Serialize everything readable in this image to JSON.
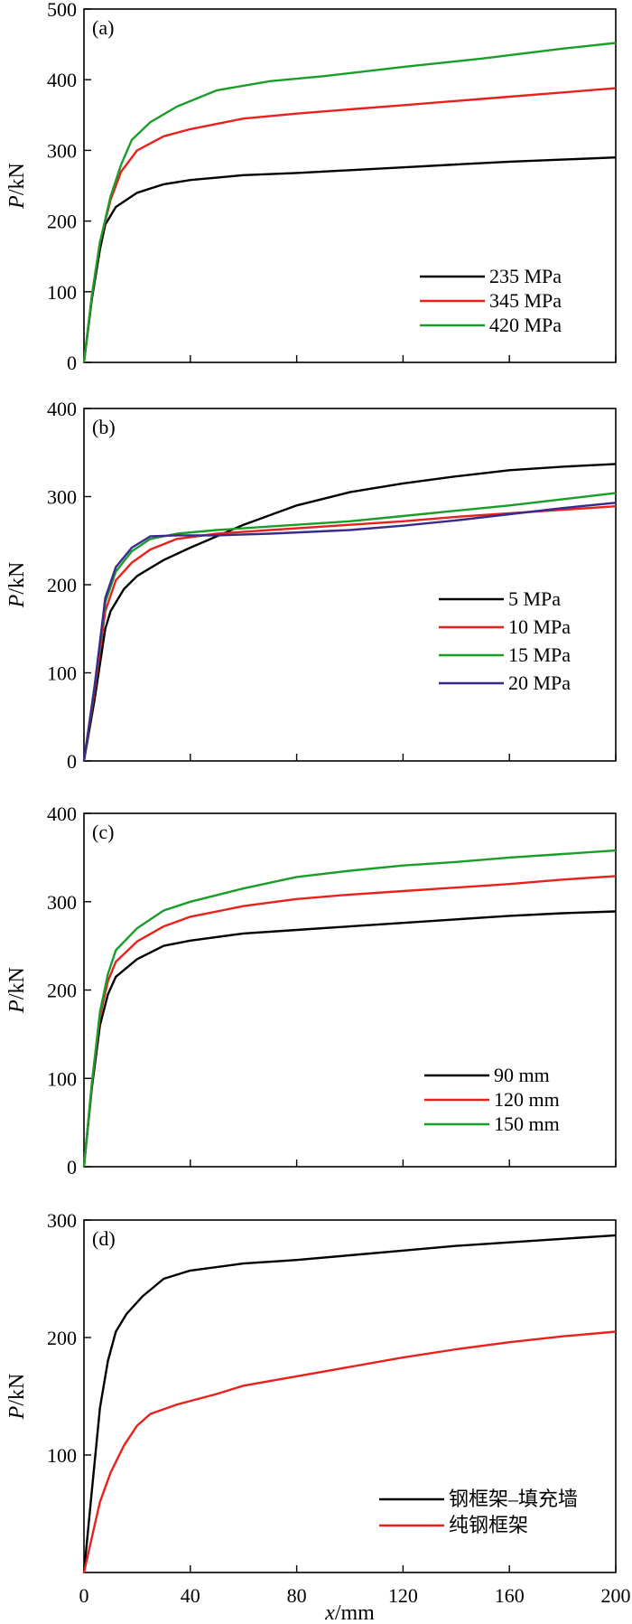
{
  "figure": {
    "x_axis_label_var": "x",
    "x_axis_label_unit": "/mm",
    "y_axis_label_var": "P",
    "y_axis_label_unit": "/kN",
    "x_tick_labels": [
      "0",
      "40",
      "80",
      "120",
      "160",
      "200"
    ]
  },
  "chart_data": [
    {
      "panel_label": "(a)",
      "type": "line",
      "xlim": [
        0,
        200
      ],
      "ylim": [
        0,
        500
      ],
      "yticks": [
        0,
        100,
        200,
        300,
        400,
        500
      ],
      "ytick_labels": [
        "0",
        "100",
        "200",
        "300",
        "400",
        "500"
      ],
      "xticks": [
        0,
        40,
        80,
        120,
        160,
        200
      ],
      "show_x_tick_labels": false,
      "legend_position": "bottom-right",
      "series": [
        {
          "name": "235 MPa",
          "color": "#000000",
          "points": [
            [
              0,
              0
            ],
            [
              3,
              90
            ],
            [
              6,
              160
            ],
            [
              8,
              195
            ],
            [
              12,
              220
            ],
            [
              20,
              240
            ],
            [
              30,
              252
            ],
            [
              40,
              258
            ],
            [
              60,
              265
            ],
            [
              80,
              268
            ],
            [
              100,
              272
            ],
            [
              120,
              276
            ],
            [
              140,
              280
            ],
            [
              160,
              284
            ],
            [
              180,
              287
            ],
            [
              200,
              290
            ]
          ]
        },
        {
          "name": "345 MPa",
          "color": "#e8211d",
          "points": [
            [
              0,
              0
            ],
            [
              3,
              95
            ],
            [
              6,
              170
            ],
            [
              10,
              230
            ],
            [
              14,
              270
            ],
            [
              20,
              300
            ],
            [
              30,
              320
            ],
            [
              40,
              330
            ],
            [
              60,
              345
            ],
            [
              80,
              352
            ],
            [
              100,
              358
            ],
            [
              120,
              364
            ],
            [
              140,
              370
            ],
            [
              160,
              376
            ],
            [
              180,
              382
            ],
            [
              200,
              388
            ]
          ]
        },
        {
          "name": "420 MPa",
          "color": "#1a9e2a",
          "points": [
            [
              0,
              0
            ],
            [
              3,
              95
            ],
            [
              6,
              170
            ],
            [
              10,
              235
            ],
            [
              14,
              280
            ],
            [
              18,
              315
            ],
            [
              25,
              340
            ],
            [
              35,
              362
            ],
            [
              50,
              385
            ],
            [
              70,
              398
            ],
            [
              90,
              405
            ],
            [
              120,
              418
            ],
            [
              150,
              430
            ],
            [
              180,
              444
            ],
            [
              200,
              452
            ]
          ]
        }
      ]
    },
    {
      "panel_label": "(b)",
      "type": "line",
      "xlim": [
        0,
        200
      ],
      "ylim": [
        0,
        400
      ],
      "yticks": [
        0,
        100,
        200,
        300,
        400
      ],
      "ytick_labels": [
        "0",
        "100",
        "200",
        "300",
        "400"
      ],
      "xticks": [
        0,
        40,
        80,
        120,
        160,
        200
      ],
      "show_x_tick_labels": false,
      "legend_position": "bottom-right",
      "series": [
        {
          "name": "5 MPa",
          "color": "#000000",
          "points": [
            [
              0,
              0
            ],
            [
              4,
              70
            ],
            [
              8,
              150
            ],
            [
              10,
              170
            ],
            [
              15,
              195
            ],
            [
              20,
              210
            ],
            [
              30,
              228
            ],
            [
              40,
              242
            ],
            [
              50,
              255
            ],
            [
              60,
              268
            ],
            [
              80,
              290
            ],
            [
              100,
              305
            ],
            [
              120,
              315
            ],
            [
              140,
              323
            ],
            [
              160,
              330
            ],
            [
              180,
              334
            ],
            [
              200,
              337
            ]
          ]
        },
        {
          "name": "10 MPa",
          "color": "#e8211d",
          "points": [
            [
              0,
              0
            ],
            [
              4,
              80
            ],
            [
              8,
              170
            ],
            [
              12,
              205
            ],
            [
              18,
              225
            ],
            [
              25,
              240
            ],
            [
              35,
              252
            ],
            [
              50,
              258
            ],
            [
              70,
              262
            ],
            [
              100,
              268
            ],
            [
              120,
              272
            ],
            [
              140,
              277
            ],
            [
              160,
              281
            ],
            [
              180,
              285
            ],
            [
              200,
              289
            ]
          ]
        },
        {
          "name": "15 MPa",
          "color": "#1a9e2a",
          "points": [
            [
              0,
              0
            ],
            [
              4,
              85
            ],
            [
              8,
              180
            ],
            [
              12,
              215
            ],
            [
              18,
              238
            ],
            [
              25,
              252
            ],
            [
              35,
              258
            ],
            [
              50,
              262
            ],
            [
              70,
              266
            ],
            [
              100,
              272
            ],
            [
              120,
              278
            ],
            [
              140,
              284
            ],
            [
              160,
              290
            ],
            [
              180,
              297
            ],
            [
              200,
              304
            ]
          ]
        },
        {
          "name": "20 MPa",
          "color": "#3a2a8c",
          "points": [
            [
              0,
              0
            ],
            [
              4,
              85
            ],
            [
              8,
              185
            ],
            [
              12,
              220
            ],
            [
              18,
              242
            ],
            [
              25,
              255
            ],
            [
              35,
              256
            ],
            [
              50,
              256
            ],
            [
              70,
              258
            ],
            [
              100,
              262
            ],
            [
              120,
              267
            ],
            [
              140,
              273
            ],
            [
              160,
              280
            ],
            [
              180,
              287
            ],
            [
              200,
              293
            ]
          ]
        }
      ]
    },
    {
      "panel_label": "(c)",
      "type": "line",
      "xlim": [
        0,
        200
      ],
      "ylim": [
        0,
        400
      ],
      "yticks": [
        0,
        100,
        200,
        300,
        400
      ],
      "ytick_labels": [
        "0",
        "100",
        "200",
        "300",
        "400"
      ],
      "xticks": [
        0,
        40,
        80,
        120,
        160,
        200
      ],
      "show_x_tick_labels": false,
      "legend_position": "bottom-right",
      "series": [
        {
          "name": "90 mm",
          "color": "#000000",
          "points": [
            [
              0,
              0
            ],
            [
              3,
              90
            ],
            [
              6,
              160
            ],
            [
              9,
              195
            ],
            [
              12,
              215
            ],
            [
              20,
              235
            ],
            [
              30,
              250
            ],
            [
              40,
              256
            ],
            [
              60,
              264
            ],
            [
              80,
              268
            ],
            [
              100,
              272
            ],
            [
              120,
              276
            ],
            [
              140,
              280
            ],
            [
              160,
              284
            ],
            [
              180,
              287
            ],
            [
              200,
              289
            ]
          ]
        },
        {
          "name": "120 mm",
          "color": "#e8211d",
          "points": [
            [
              0,
              0
            ],
            [
              3,
              95
            ],
            [
              6,
              170
            ],
            [
              9,
              210
            ],
            [
              12,
              232
            ],
            [
              20,
              255
            ],
            [
              30,
              272
            ],
            [
              40,
              283
            ],
            [
              60,
              295
            ],
            [
              80,
              303
            ],
            [
              100,
              308
            ],
            [
              120,
              312
            ],
            [
              140,
              316
            ],
            [
              160,
              320
            ],
            [
              180,
              325
            ],
            [
              200,
              329
            ]
          ]
        },
        {
          "name": "150 mm",
          "color": "#1a9e2a",
          "points": [
            [
              0,
              0
            ],
            [
              3,
              95
            ],
            [
              6,
              175
            ],
            [
              9,
              218
            ],
            [
              12,
              245
            ],
            [
              20,
              270
            ],
            [
              30,
              290
            ],
            [
              40,
              300
            ],
            [
              60,
              315
            ],
            [
              80,
              328
            ],
            [
              100,
              335
            ],
            [
              120,
              341
            ],
            [
              140,
              345
            ],
            [
              160,
              350
            ],
            [
              180,
              354
            ],
            [
              200,
              358
            ]
          ]
        }
      ]
    },
    {
      "panel_label": "(d)",
      "type": "line",
      "xlim": [
        0,
        200
      ],
      "ylim": [
        0,
        300
      ],
      "yticks": [
        100,
        200,
        300
      ],
      "ytick_labels": [
        "100",
        "200",
        "300"
      ],
      "xticks": [
        0,
        40,
        80,
        120,
        160,
        200
      ],
      "show_x_tick_labels": true,
      "legend_position": "bottom-right",
      "series": [
        {
          "name": "钢框架–填充墙",
          "color": "#000000",
          "points": [
            [
              0,
              0
            ],
            [
              3,
              70
            ],
            [
              6,
              140
            ],
            [
              9,
              180
            ],
            [
              12,
              205
            ],
            [
              16,
              220
            ],
            [
              22,
              235
            ],
            [
              30,
              250
            ],
            [
              40,
              257
            ],
            [
              60,
              263
            ],
            [
              80,
              266
            ],
            [
              100,
              270
            ],
            [
              120,
              274
            ],
            [
              140,
              278
            ],
            [
              160,
              281
            ],
            [
              180,
              284
            ],
            [
              200,
              287
            ]
          ]
        },
        {
          "name": "纯钢框架",
          "color": "#e8211d",
          "points": [
            [
              0,
              0
            ],
            [
              3,
              30
            ],
            [
              6,
              60
            ],
            [
              10,
              85
            ],
            [
              15,
              108
            ],
            [
              20,
              125
            ],
            [
              25,
              135
            ],
            [
              35,
              143
            ],
            [
              50,
              152
            ],
            [
              60,
              159
            ],
            [
              80,
              167
            ],
            [
              100,
              175
            ],
            [
              120,
              183
            ],
            [
              140,
              190
            ],
            [
              160,
              196
            ],
            [
              180,
              201
            ],
            [
              200,
              205
            ]
          ]
        }
      ]
    }
  ]
}
